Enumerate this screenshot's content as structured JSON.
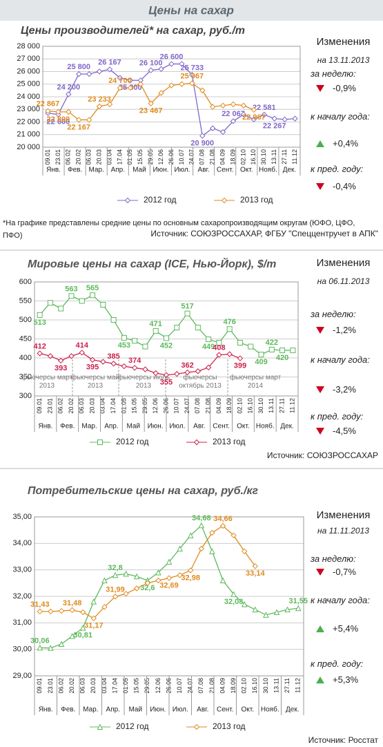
{
  "header": "Цены на сахар",
  "chart_data": [
    {
      "type": "line",
      "title": "Цены производителей* на сахар, руб./т",
      "categories": [
        "09.01",
        "23.01",
        "06.02",
        "20.02",
        "06.03",
        "20.03",
        "03.04",
        "17.04",
        "01.05",
        "15.05",
        "29.05",
        "12.06",
        "26.06",
        "10.07",
        "24.07",
        "07.08",
        "21.08",
        "04.09",
        "18.09",
        "02.10",
        "16.10",
        "30.10",
        "13.11",
        "27.11",
        "11.12"
      ],
      "months": [
        "Янв.",
        "Фев.",
        "Мар.",
        "Апр.",
        "Май",
        "Июн.",
        "Июл.",
        "Авг.",
        "Сент.",
        "Окт.",
        "Нояб.",
        "Дек."
      ],
      "ylim": [
        20000,
        28000
      ],
      "yticks": [
        {
          "value": 20000,
          "label": "20 000"
        },
        {
          "value": 21000,
          "label": "21 000"
        },
        {
          "value": 22000,
          "label": "22 000"
        },
        {
          "value": 23000,
          "label": "23 000"
        },
        {
          "value": 24000,
          "label": "24 000"
        },
        {
          "value": 25000,
          "label": "25 000"
        },
        {
          "value": 26000,
          "label": "26 000"
        },
        {
          "value": 27000,
          "label": "27 000"
        },
        {
          "value": 28000,
          "label": "28 000"
        }
      ],
      "grid": true,
      "series": [
        {
          "name": "2012 год",
          "color": "#8066c9",
          "marker": "diamond",
          "values": [
            22700,
            22600,
            24200,
            25800,
            25800,
            26000,
            26167,
            25500,
            25300,
            25300,
            26100,
            26200,
            26600,
            26600,
            25733,
            20900,
            21500,
            21200,
            22067,
            22600,
            22200,
            22581,
            22267,
            22200,
            22267
          ],
          "value_labels": [
            null,
            "22 600",
            "24 200",
            "25 800",
            null,
            null,
            "26 167",
            null,
            "25 300",
            null,
            "26 100",
            null,
            "26 600",
            null,
            "25 733",
            "20 900",
            null,
            null,
            "22 067",
            null,
            null,
            "22 581",
            "22 267",
            null,
            null
          ]
        },
        {
          "name": "2013 год",
          "color": "#e08a1e",
          "marker": "diamond",
          "values": [
            22867,
            22800,
            22800,
            22167,
            22167,
            23233,
            23400,
            24700,
            24700,
            25000,
            23467,
            24300,
            24900,
            25000,
            25067,
            24500,
            23200,
            23300,
            23400,
            23300,
            22967,
            null,
            null,
            null,
            null
          ],
          "value_labels": [
            "22 867",
            "22 800",
            null,
            "22 167",
            null,
            "23 233",
            null,
            "24 700",
            null,
            null,
            "23 467",
            null,
            null,
            null,
            "25 067",
            null,
            null,
            null,
            null,
            null,
            "22 967",
            null,
            null,
            null,
            null
          ]
        }
      ],
      "footnote": "*На графике представлены средние цены по основным сахаропроизводящим округам (ЮФО, ЦФО, ПФО)",
      "source": "Источник: СОЮЗРОССАХАР, ФГБУ \"Спеццентручет в АПК\"",
      "changes": {
        "title": "Изменения",
        "date": "на 13.11.2013",
        "items": [
          {
            "label": "за неделю:",
            "value": {
              "value": -0.9,
              "label": "-0,9%"
            }
          },
          {
            "label": "к началу года:",
            "value": {
              "value": 0.4,
              "label": "+0,4%"
            }
          },
          {
            "label": "к пред. году:",
            "value": {
              "value": -0.4,
              "label": "-0,4%"
            }
          }
        ]
      }
    },
    {
      "type": "line",
      "title": "Мировые цены на сахар (ICE, Нью-Йорк), $/т",
      "categories": [
        "09.01",
        "23.01",
        "06.02",
        "20.02",
        "06.03",
        "20.03",
        "03.04",
        "17.04",
        "01.05",
        "15.05",
        "29.05",
        "12.06",
        "26.06",
        "10.07",
        "24.07",
        "07.08",
        "21.08",
        "04.09",
        "18.09",
        "02.10",
        "16.10",
        "30.10",
        "13.11",
        "27.11",
        "11.12"
      ],
      "months": [
        "Янв.",
        "Фев.",
        "Мар.",
        "Апр.",
        "Май",
        "Июн.",
        "Июл.",
        "Авг.",
        "Сент.",
        "Окт.",
        "Нояб.",
        "Дек."
      ],
      "ylim": [
        300,
        600
      ],
      "yticks": [
        300,
        350,
        400,
        450,
        500,
        550,
        600
      ],
      "grid": true,
      "series": [
        {
          "name": "2012 год",
          "color": "#5cb85c",
          "marker": "square",
          "values": [
            513,
            545,
            530,
            563,
            550,
            565,
            540,
            500,
            453,
            445,
            430,
            471,
            452,
            480,
            517,
            480,
            449,
            440,
            476,
            440,
            430,
            409,
            422,
            420,
            420
          ],
          "value_labels": [
            "513",
            null,
            null,
            "563",
            null,
            "565",
            null,
            null,
            "453",
            null,
            null,
            "471",
            "452",
            null,
            "517",
            null,
            "449",
            null,
            "476",
            null,
            null,
            "409",
            "422",
            "420",
            null
          ]
        },
        {
          "name": "2013 год",
          "color": "#cc1f4a",
          "marker": "diamond",
          "values": [
            412,
            405,
            393,
            405,
            414,
            395,
            390,
            385,
            378,
            374,
            370,
            360,
            355,
            358,
            362,
            365,
            375,
            408,
            410,
            399,
            null,
            null,
            null,
            null,
            null
          ],
          "value_labels": [
            "412",
            null,
            "393",
            null,
            "414",
            "395",
            null,
            "385",
            null,
            "374",
            null,
            null,
            "355",
            null,
            "362",
            null,
            null,
            "408",
            null,
            "399",
            null,
            null,
            null,
            null,
            null
          ]
        }
      ],
      "annotations": [
        "фьючерсы март 2013",
        "фьючерсы май 2013",
        "фьючерсы июль 2013",
        "фьючерсы октябрь 2013",
        "фьючерсы март 2014"
      ],
      "source": "Источник: СОЮЗРОССАХАР",
      "changes": {
        "title": "Изменения",
        "date": "на 06.11.2013",
        "items": [
          {
            "label": "за неделю:",
            "value": {
              "value": -1.2,
              "label": "-1,2%"
            }
          },
          {
            "label": "к началу года:",
            "value": {
              "value": -3.2,
              "label": "-3,2%"
            }
          },
          {
            "label": "к пред. году:",
            "value": {
              "value": -4.5,
              "label": "-4,5%"
            }
          }
        ]
      }
    },
    {
      "type": "line",
      "title": "Потребительские цены на сахар, руб./кг",
      "categories": [
        "09.01",
        "23.01",
        "06.02",
        "20.02",
        "06.03",
        "20.03",
        "03.04",
        "17.04",
        "01.05",
        "15.05",
        "29.05",
        "12.06",
        "26.06",
        "10.07",
        "24.07",
        "07.08",
        "21.08",
        "04.09",
        "18.09",
        "02.10",
        "16.10",
        "30.10",
        "13.11",
        "27.11",
        "11.12"
      ],
      "months": [
        "Янв.",
        "Фев.",
        "Мар.",
        "Апр.",
        "Май",
        "Июн.",
        "Июл.",
        "Авг.",
        "Сент.",
        "Окт.",
        "Нояб.",
        "Дек."
      ],
      "ylim": [
        29,
        35
      ],
      "yticks": [
        {
          "value": 29,
          "label": "29,00"
        },
        {
          "value": 30,
          "label": "30,00"
        },
        {
          "value": 31,
          "label": "31,00"
        },
        {
          "value": 32,
          "label": "32,00"
        },
        {
          "value": 33,
          "label": "33,00"
        },
        {
          "value": 34,
          "label": "34,00"
        },
        {
          "value": 35,
          "label": "35,00"
        }
      ],
      "grid": true,
      "series": [
        {
          "name": "2012 год",
          "color": "#5cb85c",
          "marker": "triangle",
          "values": [
            30.06,
            30.05,
            30.2,
            30.5,
            30.81,
            31.8,
            32.6,
            32.8,
            32.85,
            32.75,
            32.6,
            32.9,
            33.3,
            33.8,
            34.3,
            34.68,
            33.7,
            32.6,
            32.08,
            31.7,
            31.5,
            31.3,
            31.4,
            31.5,
            31.55
          ],
          "value_labels": [
            "30,06",
            null,
            null,
            null,
            "30,81",
            null,
            null,
            "32,8",
            null,
            null,
            "32,6",
            null,
            null,
            null,
            null,
            "34,68",
            null,
            null,
            "32,08",
            null,
            null,
            null,
            null,
            null,
            "31,55"
          ]
        },
        {
          "name": "2013 год",
          "color": "#e08a1e",
          "marker": "diamond",
          "values": [
            31.43,
            31.43,
            31.45,
            31.48,
            31.4,
            31.17,
            31.6,
            31.99,
            32.1,
            32.3,
            32.5,
            32.6,
            32.69,
            32.8,
            32.98,
            33.8,
            34.4,
            34.66,
            34.3,
            33.7,
            33.14,
            null,
            null,
            null,
            null
          ],
          "value_labels": [
            "31,43",
            null,
            null,
            "31,48",
            null,
            "31,17",
            null,
            "31,99",
            null,
            null,
            null,
            null,
            "32,69",
            null,
            "32,98",
            null,
            null,
            "34,66",
            null,
            null,
            "33,14",
            null,
            null,
            null,
            null
          ]
        }
      ],
      "source": "Источник: Росстат",
      "changes": {
        "title": "Изменения",
        "date": "на 11.11.2013",
        "items": [
          {
            "label": "за неделю:",
            "value": {
              "value": -0.7,
              "label": "-0,7%"
            }
          },
          {
            "label": "к началу года:",
            "value": {
              "value": 5.4,
              "label": "+5,4%"
            }
          },
          {
            "label": "к пред. году:",
            "value": {
              "value": 5.3,
              "label": "+5,3%"
            }
          }
        ]
      }
    }
  ]
}
